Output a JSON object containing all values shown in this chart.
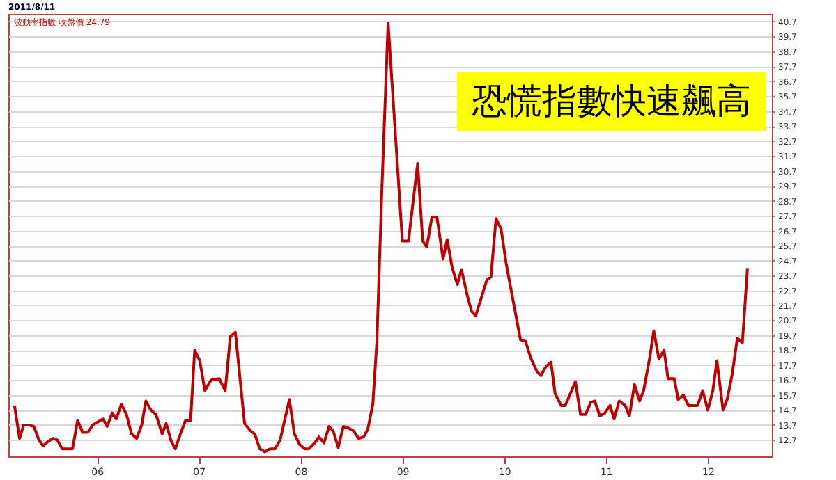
{
  "chart_data": {
    "type": "line",
    "title": "2011/8/11",
    "annotations": [
      "波動率指數 收盤價 24.79",
      "恐慌指數快速飆高"
    ],
    "x": [
      5.19,
      5.24,
      5.28,
      5.33,
      5.38,
      5.43,
      5.47,
      5.52,
      5.57,
      5.61,
      5.66,
      5.76,
      5.81,
      5.86,
      5.91,
      5.96,
      6.01,
      6.06,
      6.1,
      6.15,
      6.19,
      6.24,
      6.29,
      6.34,
      6.39,
      6.44,
      6.48,
      6.53,
      6.58,
      6.64,
      6.68,
      6.73,
      6.77,
      6.82,
      6.87,
      6.92,
      6.96,
      7.01,
      7.06,
      7.12,
      7.2,
      7.26,
      7.31,
      7.36,
      7.41,
      7.45,
      7.51,
      7.55,
      7.6,
      7.65,
      7.7,
      7.75,
      7.8,
      7.84,
      7.89,
      7.94,
      7.99,
      8.04,
      8.08,
      8.14,
      8.18,
      8.23,
      8.28,
      8.32,
      8.37,
      8.42,
      8.47,
      8.52,
      8.57,
      8.62,
      8.66,
      8.71,
      8.75,
      8.8,
      8.86,
      9.0,
      9.06,
      9.15,
      9.2,
      9.24,
      9.29,
      9.34,
      9.4,
      9.44,
      9.49,
      9.54,
      9.58,
      9.64,
      9.68,
      9.72,
      9.78,
      9.83,
      9.87,
      9.92,
      9.97,
      10.02,
      10.08,
      10.16,
      10.21,
      10.26,
      10.32,
      10.36,
      10.41,
      10.46,
      10.5,
      10.56,
      10.6,
      10.65,
      10.7,
      10.75,
      10.8,
      10.85,
      10.89,
      10.94,
      10.99,
      11.04,
      11.08,
      11.13,
      11.19,
      11.23,
      11.28,
      11.33,
      11.37,
      11.43,
      11.47,
      11.52,
      11.57,
      11.61,
      11.67,
      11.71,
      11.76,
      11.81,
      11.9,
      11.95,
      12.0,
      12.05,
      12.09,
      12.15,
      12.19,
      12.24,
      12.29,
      12.34,
      12.39
    ],
    "series": [
      {
        "color": "#c00000",
        "values": [
          15.0,
          12.8,
          13.7,
          13.7,
          13.6,
          12.7,
          12.3,
          12.6,
          12.8,
          12.7,
          12.1,
          12.1,
          14.0,
          13.2,
          13.2,
          13.7,
          13.9,
          14.1,
          13.6,
          14.5,
          14.1,
          15.1,
          14.4,
          13.1,
          12.8,
          13.7,
          15.3,
          14.7,
          14.4,
          13.1,
          13.8,
          12.6,
          12.1,
          13.1,
          14.0,
          14.0,
          18.7,
          18.0,
          16.0,
          16.7,
          16.8,
          16.0,
          19.6,
          19.9,
          16.5,
          13.8,
          13.3,
          13.1,
          12.1,
          11.9,
          12.1,
          12.1,
          12.7,
          13.9,
          15.4,
          13.1,
          12.4,
          12.1,
          12.1,
          12.5,
          12.9,
          12.5,
          13.6,
          13.3,
          12.2,
          13.6,
          13.5,
          13.3,
          12.8,
          12.9,
          13.4,
          15.1,
          19.3,
          29.7,
          40.6,
          26.0,
          26.0,
          31.2,
          26.0,
          25.6,
          27.6,
          27.6,
          24.8,
          26.1,
          24.2,
          23.1,
          24.1,
          22.3,
          21.3,
          21.0,
          22.3,
          23.4,
          23.6,
          27.5,
          26.8,
          24.5,
          22.3,
          19.4,
          19.3,
          18.2,
          17.3,
          17.0,
          17.6,
          17.9,
          15.8,
          15.0,
          15.0,
          15.8,
          16.6,
          14.4,
          14.4,
          15.2,
          15.3,
          14.3,
          14.5,
          15.0,
          14.1,
          15.3,
          15.0,
          14.3,
          16.4,
          15.3,
          16.0,
          18.2,
          20.0,
          18.1,
          18.7,
          16.8,
          16.8,
          15.4,
          15.7,
          15.0,
          15.0,
          16.0,
          14.7,
          16.0,
          18.0,
          14.7,
          15.4,
          17.1,
          19.5,
          19.2,
          24.2
        ]
      }
    ],
    "xlim": [
      5.13,
      12.63
    ],
    "xticks": [
      {
        "value": 6,
        "label": "06"
      },
      {
        "value": 7,
        "label": "07"
      },
      {
        "value": 8,
        "label": "08"
      },
      {
        "value": 9,
        "label": "09"
      },
      {
        "value": 10,
        "label": "10"
      },
      {
        "value": 11,
        "label": "11"
      },
      {
        "value": 12,
        "label": "12"
      }
    ],
    "ylim": [
      11.6,
      41.2
    ],
    "yticks": [
      12.7,
      13.7,
      14.7,
      15.7,
      16.7,
      17.7,
      18.7,
      19.7,
      20.7,
      21.7,
      22.7,
      23.7,
      24.7,
      25.7,
      26.7,
      27.7,
      28.7,
      29.7,
      30.7,
      31.7,
      32.7,
      33.7,
      34.7,
      35.7,
      36.7,
      37.7,
      38.7,
      39.7,
      40.7
    ],
    "grid": "y",
    "marker": "none",
    "line_style": "solid"
  }
}
